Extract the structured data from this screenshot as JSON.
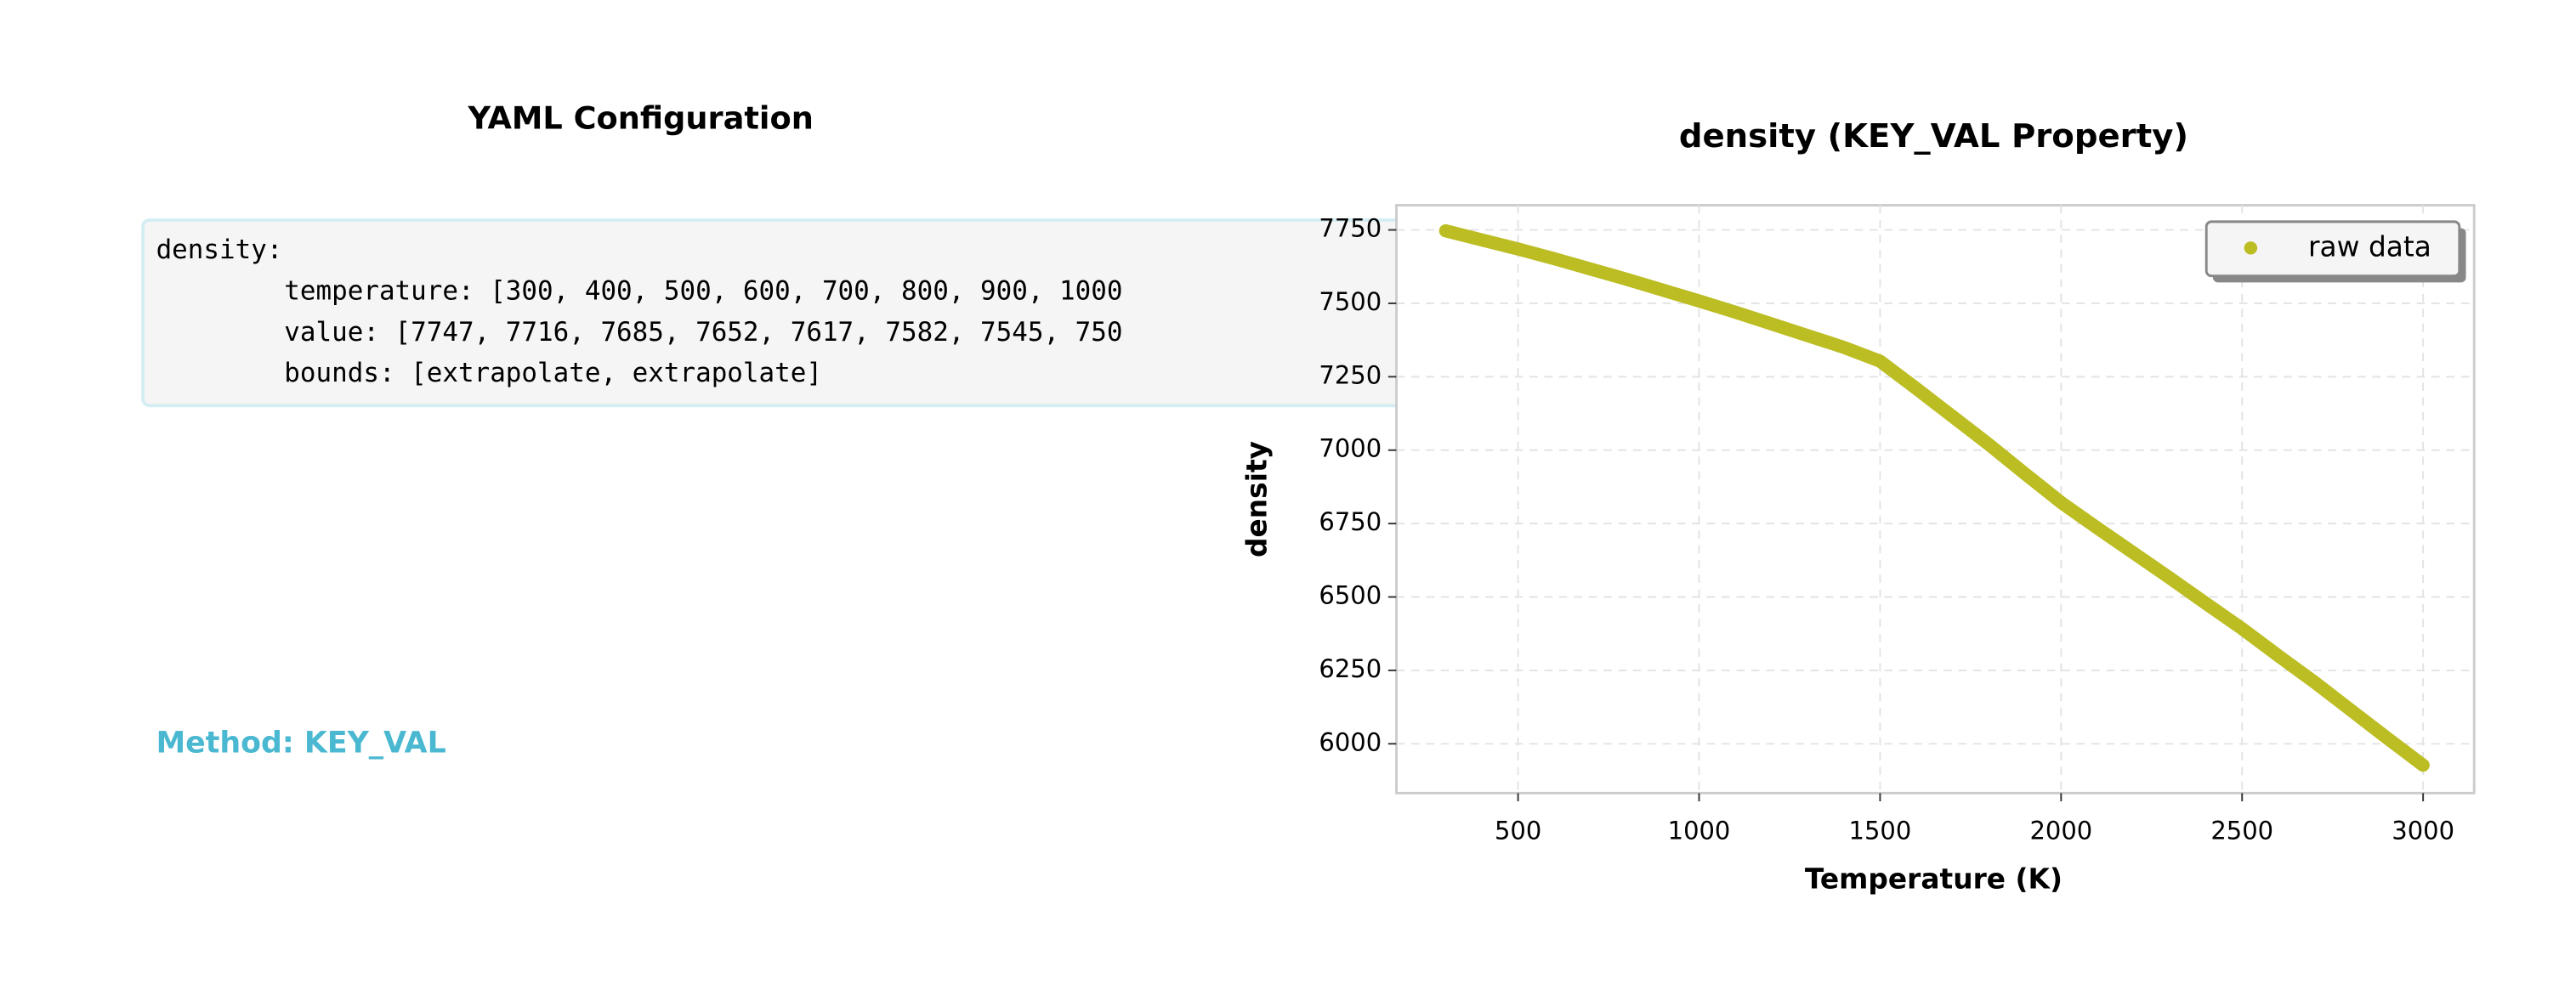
{
  "yaml": {
    "title": "YAML Configuration",
    "lines": [
      "density:",
      "temperature: [300, 400, 500, 600, 700, 800, 900, 1000",
      "value: [7747, 7716, 7685, 7652, 7617, 7582, 7545, 750",
      "bounds: [extrapolate, extrapolate]"
    ],
    "method": "Method: KEY_VAL"
  },
  "chart_data": {
    "type": "line",
    "title": "density (KEY_VAL Property)",
    "xlabel": "Temperature (K)",
    "ylabel": "density",
    "x": [
      300,
      400,
      500,
      600,
      700,
      800,
      900,
      1000,
      1100,
      1200,
      1300,
      1400,
      1500,
      1600,
      1700,
      1800,
      1900,
      2000,
      2100,
      2200,
      2300,
      2400,
      2500,
      2600,
      2700,
      2800,
      2900,
      3000
    ],
    "series": [
      {
        "name": "raw data",
        "color": "#bcbd22",
        "values": [
          7747,
          7716,
          7685,
          7652,
          7617,
          7582,
          7545,
          7508,
          7470,
          7430,
          7390,
          7350,
          7303,
          7210,
          7115,
          7020,
          6920,
          6822,
          6735,
          6650,
          6565,
          6478,
          6392,
          6300,
          6210,
          6115,
          6020,
          5927
        ]
      }
    ],
    "xlim": [
      164,
      3141
    ],
    "ylim": [
      5832,
      7834
    ],
    "xticks": [
      500,
      1000,
      1500,
      2000,
      2500,
      3000
    ],
    "yticks": [
      6000,
      6250,
      6500,
      6750,
      7000,
      7250,
      7500,
      7750
    ],
    "grid": true,
    "legend": "upper right"
  }
}
